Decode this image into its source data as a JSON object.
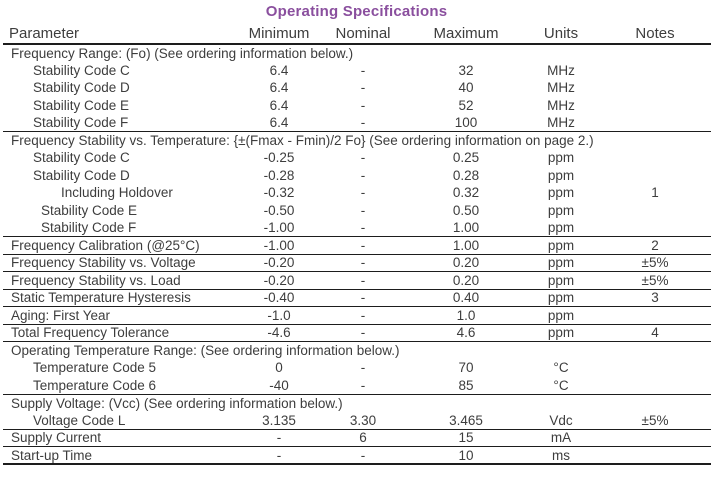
{
  "title": "Operating Specifications",
  "colors": {
    "title_accent": "#8A4F9E",
    "text": "#3d3d3d",
    "rule": "#1d1d1d"
  },
  "table": {
    "columns": [
      "Parameter",
      "Minimum",
      "Nominal",
      "Maximum",
      "Units",
      "Notes"
    ],
    "rows": [
      {
        "type": "section",
        "param": "Frequency Range: (Fo) (See ordering information below.)",
        "rule_after": "none"
      },
      {
        "type": "data",
        "param": "Stability Code C",
        "indent": 1,
        "min": "6.4",
        "nom": "-",
        "max": "32",
        "units": "MHz",
        "notes": "",
        "rule_after": "none"
      },
      {
        "type": "data",
        "param": "Stability Code D",
        "indent": 1,
        "min": "6.4",
        "nom": "-",
        "max": "40",
        "units": "MHz",
        "notes": "",
        "rule_after": "none"
      },
      {
        "type": "data",
        "param": "Stability Code E",
        "indent": 1,
        "min": "6.4",
        "nom": "-",
        "max": "52",
        "units": "MHz",
        "notes": "",
        "rule_after": "none"
      },
      {
        "type": "data",
        "param": "Stability Code F",
        "indent": 1,
        "min": "6.4",
        "nom": "-",
        "max": "100",
        "units": "MHz",
        "notes": "",
        "rule_after": "thin"
      },
      {
        "type": "section",
        "param": "Frequency Stability vs. Temperature: {±(Fmax - Fmin)/2 Fo} (See ordering information on page 2.)",
        "rule_after": "none"
      },
      {
        "type": "data",
        "param": "Stability Code C",
        "indent": 1,
        "min": "-0.25",
        "nom": "-",
        "max": "0.25",
        "units": "ppm",
        "notes": "",
        "rule_after": "none"
      },
      {
        "type": "data",
        "param": "Stability Code D",
        "indent": 1,
        "min": "-0.28",
        "nom": "-",
        "max": "0.28",
        "units": "ppm",
        "notes": "",
        "rule_after": "none"
      },
      {
        "type": "data",
        "param": "Including Holdover",
        "indent": 2,
        "min": "-0.32",
        "nom": "-",
        "max": "0.32",
        "units": "ppm",
        "notes": "1",
        "rule_after": "none"
      },
      {
        "type": "data",
        "param": "Stability Code E",
        "indent": 1.5,
        "min": "-0.50",
        "nom": "-",
        "max": "0.50",
        "units": "ppm",
        "notes": "",
        "rule_after": "none"
      },
      {
        "type": "data",
        "param": "Stability Code F",
        "indent": 1.5,
        "min": "-1.00",
        "nom": "-",
        "max": "1.00",
        "units": "ppm",
        "notes": "",
        "rule_after": "thin"
      },
      {
        "type": "data",
        "param": "Frequency Calibration (@25°C)",
        "indent": 0,
        "min": "-1.00",
        "nom": "-",
        "max": "1.00",
        "units": "ppm",
        "notes": "2",
        "rule_after": "thin"
      },
      {
        "type": "data",
        "param": "Frequency Stability vs. Voltage",
        "indent": 0,
        "min": "-0.20",
        "nom": "-",
        "max": "0.20",
        "units": "ppm",
        "notes": "±5%",
        "rule_after": "thin"
      },
      {
        "type": "data",
        "param": "Frequency Stability vs. Load",
        "indent": 0,
        "min": "-0.20",
        "nom": "-",
        "max": "0.20",
        "units": "ppm",
        "notes": "±5%",
        "rule_after": "thin"
      },
      {
        "type": "data",
        "param": "Static Temperature Hysteresis",
        "indent": 0,
        "min": "-0.40",
        "nom": "-",
        "max": "0.40",
        "units": "ppm",
        "notes": "3",
        "rule_after": "thin"
      },
      {
        "type": "data",
        "param": "Aging: First Year",
        "indent": 0,
        "min": "-1.0",
        "nom": "-",
        "max": "1.0",
        "units": "ppm",
        "notes": "",
        "rule_after": "thin"
      },
      {
        "type": "data",
        "param": "Total Frequency Tolerance",
        "indent": 0,
        "min": "-4.6",
        "nom": "-",
        "max": "4.6",
        "units": "ppm",
        "notes": "4",
        "rule_after": "thin"
      },
      {
        "type": "section",
        "param": "Operating Temperature Range: (See ordering information below.)",
        "rule_after": "none"
      },
      {
        "type": "data",
        "param": "Temperature Code 5",
        "indent": 1,
        "min": "0",
        "nom": "-",
        "max": "70",
        "units": "°C",
        "notes": "",
        "rule_after": "none"
      },
      {
        "type": "data",
        "param": "Temperature Code 6",
        "indent": 1,
        "min": "-40",
        "nom": "-",
        "max": "85",
        "units": "°C",
        "notes": "",
        "rule_after": "thin"
      },
      {
        "type": "section",
        "param": "Supply Voltage: (Vcc) (See ordering information below.)",
        "rule_after": "none"
      },
      {
        "type": "data",
        "param": "Voltage Code L",
        "indent": 1,
        "min": "3.135",
        "nom": "3.30",
        "max": "3.465",
        "units": "Vdc",
        "notes": "±5%",
        "rule_after": "thin"
      },
      {
        "type": "data",
        "param": "Supply Current",
        "indent": 0,
        "min": "-",
        "nom": "6",
        "max": "15",
        "units": "mA",
        "notes": "",
        "rule_after": "thin"
      },
      {
        "type": "data",
        "param": "Start-up Time",
        "indent": 0,
        "min": "-",
        "nom": "-",
        "max": "10",
        "units": "ms",
        "notes": "",
        "rule_after": "thick"
      }
    ]
  }
}
